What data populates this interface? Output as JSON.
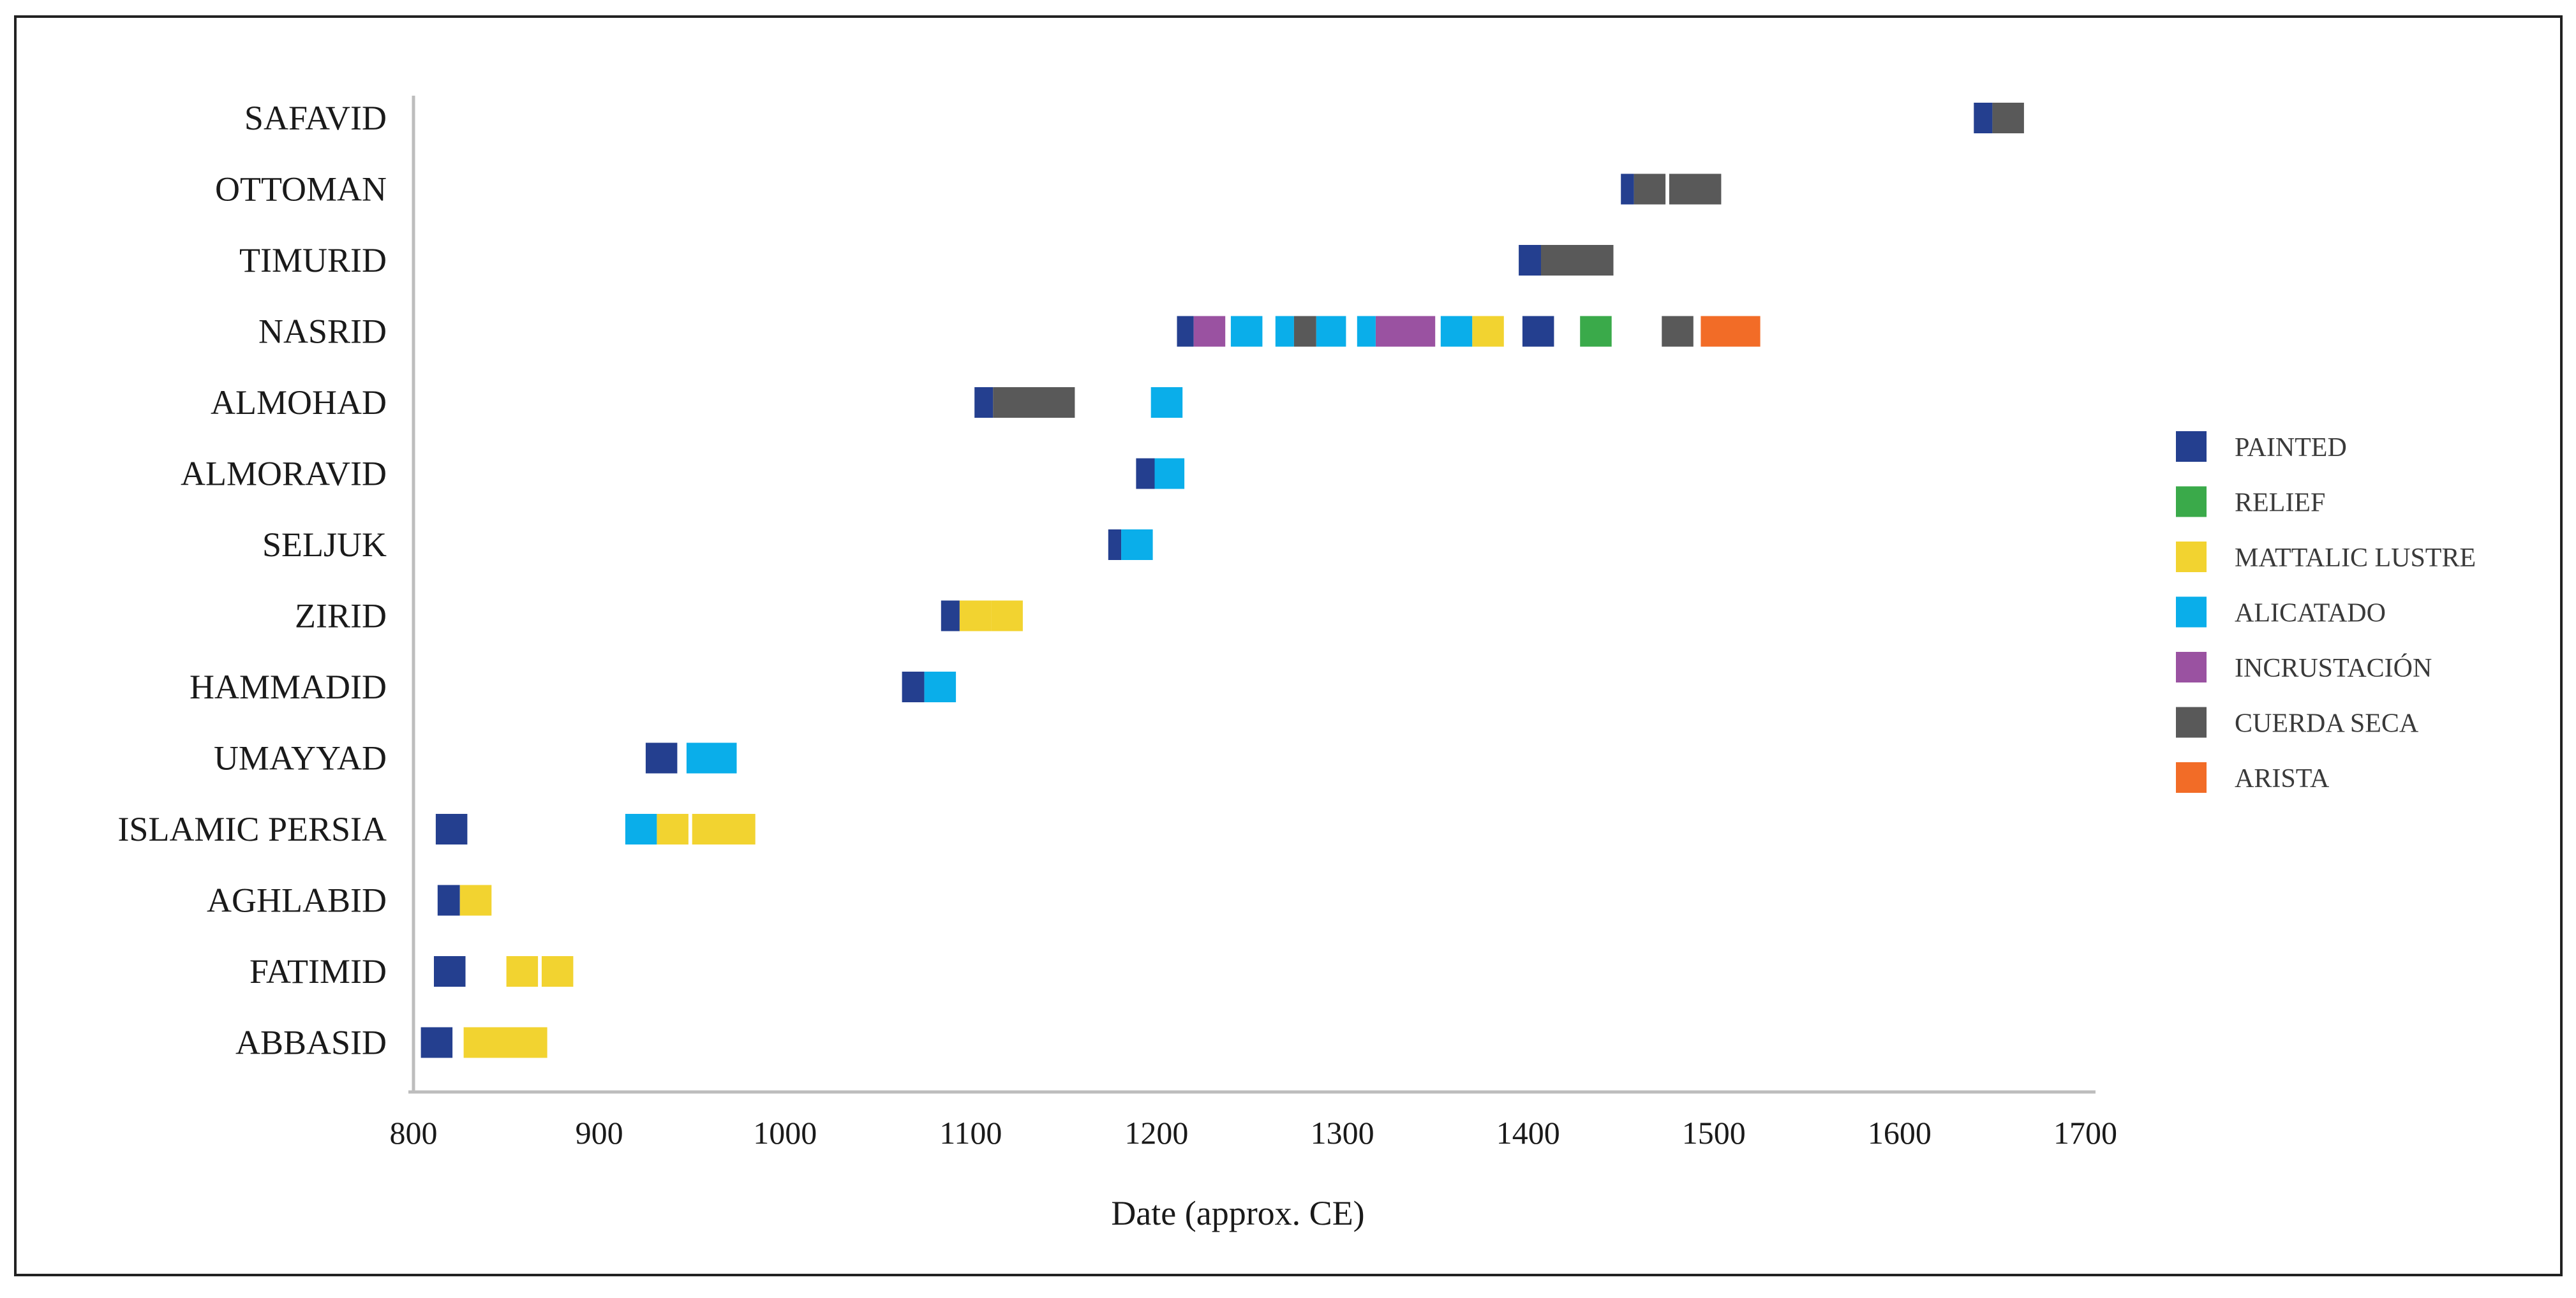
{
  "colors": {
    "PAINTED": "#243f8f",
    "RELIEF": "#3aaa4a",
    "MATTALIC LUSTRE": "#f2d330",
    "ALICATADO": "#0aaeea",
    "INCRUSTACIÓN": "#9a52a1",
    "CUERDA SECA": "#595959",
    "ARISTA": "#f26c27"
  },
  "chart_data": {
    "type": "timeline-bar",
    "title": "",
    "xlabel": "Date (approx. CE)",
    "ylabel": "",
    "xlim": [
      800,
      1700
    ],
    "xticks": [
      800,
      900,
      1000,
      1100,
      1200,
      1300,
      1400,
      1500,
      1600,
      1700
    ],
    "grid": false,
    "legend_position": "right",
    "legend": [
      "PAINTED",
      "RELIEF",
      "MATTALIC LUSTRE",
      "ALICATADO",
      "INCRUSTACIÓN",
      "CUERDA SECA",
      "ARISTA"
    ],
    "categories": [
      "SAFAVID",
      "OTTOMAN",
      "TIMURID",
      "NASRID",
      "ALMOHAD",
      "ALMORAVID",
      "SELJUK",
      "ZIRID",
      "HAMMADID",
      "UMAYYAD",
      "ISLAMIC PERSIA",
      "AGHLABID",
      "FATIMID",
      "ABBASID"
    ],
    "segments": [
      {
        "category": "SAFAVID",
        "technique": "PAINTED",
        "start": 1640,
        "end": 1650
      },
      {
        "category": "SAFAVID",
        "technique": "CUERDA SECA",
        "start": 1650,
        "end": 1667
      },
      {
        "category": "OTTOMAN",
        "technique": "PAINTED",
        "start": 1450,
        "end": 1457
      },
      {
        "category": "OTTOMAN",
        "technique": "CUERDA SECA",
        "start": 1457,
        "end": 1474
      },
      {
        "category": "OTTOMAN",
        "technique": "CUERDA SECA",
        "start": 1476,
        "end": 1504
      },
      {
        "category": "TIMURID",
        "technique": "PAINTED",
        "start": 1395,
        "end": 1407
      },
      {
        "category": "TIMURID",
        "technique": "CUERDA SECA",
        "start": 1407,
        "end": 1446
      },
      {
        "category": "NASRID",
        "technique": "PAINTED",
        "start": 1211,
        "end": 1220
      },
      {
        "category": "NASRID",
        "technique": "INCRUSTACIÓN",
        "start": 1220,
        "end": 1237
      },
      {
        "category": "NASRID",
        "technique": "ALICATADO",
        "start": 1240,
        "end": 1257
      },
      {
        "category": "NASRID",
        "technique": "ALICATADO",
        "start": 1264,
        "end": 1274
      },
      {
        "category": "NASRID",
        "technique": "CUERDA SECA",
        "start": 1274,
        "end": 1286
      },
      {
        "category": "NASRID",
        "technique": "ALICATADO",
        "start": 1286,
        "end": 1302
      },
      {
        "category": "NASRID",
        "technique": "ALICATADO",
        "start": 1308,
        "end": 1318
      },
      {
        "category": "NASRID",
        "technique": "INCRUSTACIÓN",
        "start": 1318,
        "end": 1350
      },
      {
        "category": "NASRID",
        "technique": "ALICATADO",
        "start": 1353,
        "end": 1370
      },
      {
        "category": "NASRID",
        "technique": "MATTALIC LUSTRE",
        "start": 1370,
        "end": 1387
      },
      {
        "category": "NASRID",
        "technique": "PAINTED",
        "start": 1397,
        "end": 1414
      },
      {
        "category": "NASRID",
        "technique": "RELIEF",
        "start": 1428,
        "end": 1445
      },
      {
        "category": "NASRID",
        "technique": "CUERDA SECA",
        "start": 1472,
        "end": 1489
      },
      {
        "category": "NASRID",
        "technique": "ARISTA",
        "start": 1493,
        "end": 1525
      },
      {
        "category": "ALMOHAD",
        "technique": "PAINTED",
        "start": 1102,
        "end": 1112
      },
      {
        "category": "ALMOHAD",
        "technique": "CUERDA SECA",
        "start": 1112,
        "end": 1156
      },
      {
        "category": "ALMOHAD",
        "technique": "ALICATADO",
        "start": 1197,
        "end": 1214
      },
      {
        "category": "ALMORAVID",
        "technique": "PAINTED",
        "start": 1189,
        "end": 1199
      },
      {
        "category": "ALMORAVID",
        "technique": "ALICATADO",
        "start": 1199,
        "end": 1215
      },
      {
        "category": "SELJUK",
        "technique": "PAINTED",
        "start": 1174,
        "end": 1181
      },
      {
        "category": "SELJUK",
        "technique": "ALICATADO",
        "start": 1181,
        "end": 1198
      },
      {
        "category": "ZIRID",
        "technique": "PAINTED",
        "start": 1084,
        "end": 1094
      },
      {
        "category": "ZIRID",
        "technique": "MATTALIC LUSTRE",
        "start": 1094,
        "end": 1111
      },
      {
        "category": "ZIRID",
        "technique": "MATTALIC LUSTRE",
        "start": 1111,
        "end": 1128
      },
      {
        "category": "HAMMADID",
        "technique": "PAINTED",
        "start": 1063,
        "end": 1075
      },
      {
        "category": "HAMMADID",
        "technique": "ALICATADO",
        "start": 1075,
        "end": 1092
      },
      {
        "category": "UMAYYAD",
        "technique": "PAINTED",
        "start": 925,
        "end": 942
      },
      {
        "category": "UMAYYAD",
        "technique": "ALICATADO",
        "start": 947,
        "end": 974
      },
      {
        "category": "ISLAMIC PERSIA",
        "technique": "PAINTED",
        "start": 812,
        "end": 829
      },
      {
        "category": "ISLAMIC PERSIA",
        "technique": "ALICATADO",
        "start": 914,
        "end": 931
      },
      {
        "category": "ISLAMIC PERSIA",
        "technique": "MATTALIC LUSTRE",
        "start": 931,
        "end": 948
      },
      {
        "category": "ISLAMIC PERSIA",
        "technique": "MATTALIC LUSTRE",
        "start": 950,
        "end": 984
      },
      {
        "category": "AGHLABID",
        "technique": "PAINTED",
        "start": 813,
        "end": 825
      },
      {
        "category": "AGHLABID",
        "technique": "MATTALIC LUSTRE",
        "start": 825,
        "end": 842
      },
      {
        "category": "FATIMID",
        "technique": "PAINTED",
        "start": 811,
        "end": 828
      },
      {
        "category": "FATIMID",
        "technique": "MATTALIC LUSTRE",
        "start": 850,
        "end": 867
      },
      {
        "category": "FATIMID",
        "technique": "MATTALIC LUSTRE",
        "start": 869,
        "end": 886
      },
      {
        "category": "ABBASID",
        "technique": "PAINTED",
        "start": 804,
        "end": 821
      },
      {
        "category": "ABBASID",
        "technique": "MATTALIC LUSTRE",
        "start": 827,
        "end": 872
      }
    ]
  }
}
